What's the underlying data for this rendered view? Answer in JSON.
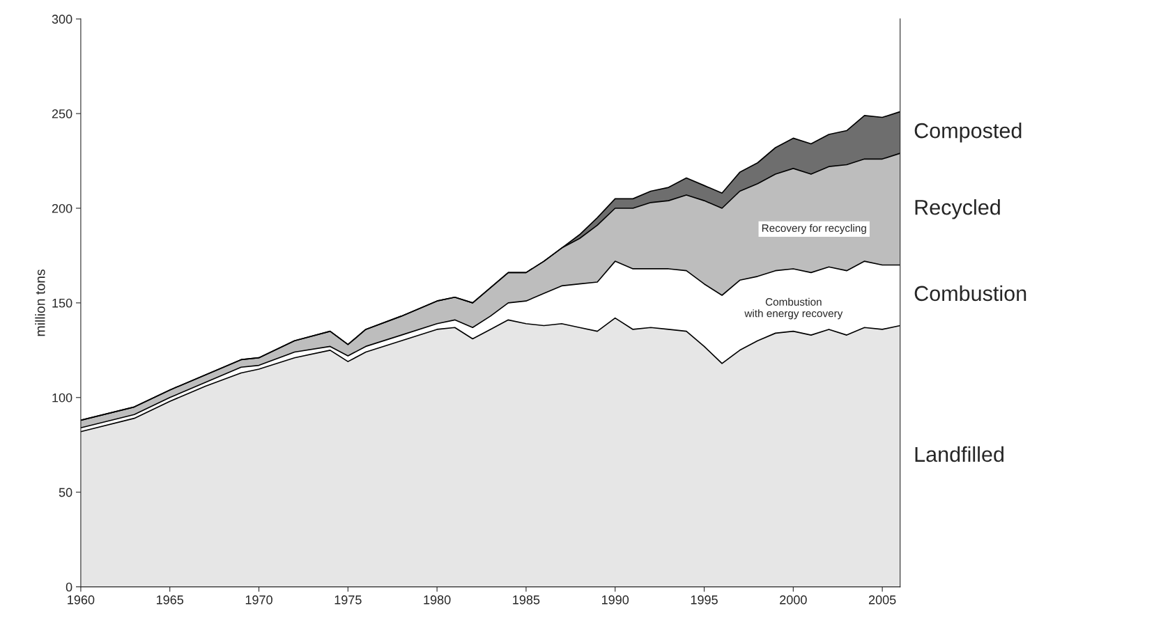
{
  "chart_data": {
    "type": "area",
    "stacked": true,
    "ylabel": "million tons",
    "x": [
      1960,
      1963,
      1965,
      1967,
      1969,
      1970,
      1972,
      1974,
      1975,
      1976,
      1978,
      1980,
      1981,
      1982,
      1983,
      1984,
      1985,
      1986,
      1987,
      1988,
      1989,
      1990,
      1991,
      1992,
      1993,
      1994,
      1995,
      1996,
      1997,
      1998,
      1999,
      2000,
      2001,
      2002,
      2003,
      2004,
      2005,
      2006
    ],
    "series": [
      {
        "name": "Landfilled",
        "color": "#e6e6e6",
        "values": [
          82,
          89,
          98,
          106,
          113,
          115,
          121,
          125,
          119,
          124,
          130,
          136,
          137,
          131,
          136,
          141,
          139,
          138,
          139,
          137,
          135,
          142,
          136,
          137,
          136,
          135,
          127,
          118,
          125,
          130,
          134,
          135,
          133,
          136,
          133,
          137,
          136,
          138
        ]
      },
      {
        "name": "Combustion",
        "color": "#ffffff",
        "values": [
          2,
          2,
          2,
          2,
          3,
          2,
          3,
          2,
          3,
          3,
          3,
          3,
          4,
          6,
          7,
          9,
          12,
          17,
          20,
          23,
          26,
          30,
          32,
          31,
          32,
          32,
          33,
          36,
          37,
          34,
          33,
          33,
          33,
          33,
          34,
          35,
          34,
          32
        ]
      },
      {
        "name": "Recycled",
        "color": "#bdbdbd",
        "values": [
          4,
          4,
          4,
          4,
          4,
          4,
          6,
          8,
          6,
          9,
          10,
          12,
          12,
          13,
          15,
          16,
          15,
          17,
          20,
          24,
          30,
          28,
          32,
          35,
          36,
          40,
          44,
          46,
          47,
          49,
          51,
          53,
          52,
          53,
          56,
          54,
          56,
          59
        ]
      },
      {
        "name": "Composted",
        "color": "#6e6e6e",
        "values": [
          0,
          0,
          0,
          0,
          0,
          0,
          0,
          0,
          0,
          0,
          0,
          0,
          0,
          0,
          0,
          0,
          0,
          0,
          0,
          2,
          4,
          5,
          5,
          6,
          7,
          9,
          8,
          8,
          10,
          11,
          14,
          16,
          16,
          17,
          18,
          23,
          22,
          22
        ]
      }
    ],
    "annotations": [
      "Recovery for recycling",
      "Combustion\nwith energy recovery"
    ],
    "xlim": [
      1960,
      2006
    ],
    "xticks": [
      1960,
      1965,
      1970,
      1975,
      1980,
      1985,
      1990,
      1995,
      2000,
      2005
    ],
    "ylim": [
      0,
      300
    ],
    "yticks": [
      0,
      50,
      100,
      150,
      200,
      250,
      300
    ],
    "grid": false,
    "legend": false
  }
}
